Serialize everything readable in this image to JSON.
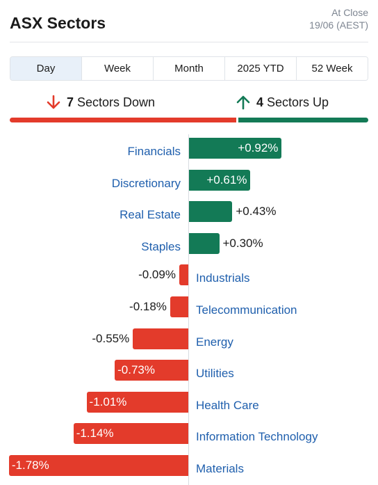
{
  "header": {
    "title": "ASX Sectors",
    "as_of_line1": "At Close",
    "as_of_line2": "19/06 (AEST)"
  },
  "tabs": [
    {
      "label": "Day",
      "active": true
    },
    {
      "label": "Week",
      "active": false
    },
    {
      "label": "Month",
      "active": false
    },
    {
      "label": "2025 YTD",
      "active": false
    },
    {
      "label": "52 Week",
      "active": false
    }
  ],
  "summary": {
    "down_count": "7",
    "down_label": "Sectors Down",
    "up_count": "4",
    "up_label": "Sectors Up"
  },
  "colors": {
    "up": "#137a56",
    "down": "#e33b2b",
    "sector_link": "#1f5fad",
    "active_tab": "#e8f0f9"
  },
  "icons": {
    "down": "arrow-down-icon",
    "up": "arrow-up-icon"
  },
  "sectors": [
    {
      "name": "Financials",
      "change": 0.92,
      "label": "+0.92%"
    },
    {
      "name": "Discretionary",
      "change": 0.61,
      "label": "+0.61%"
    },
    {
      "name": "Real Estate",
      "change": 0.43,
      "label": "+0.43%"
    },
    {
      "name": "Staples",
      "change": 0.3,
      "label": "+0.30%"
    },
    {
      "name": "Industrials",
      "change": -0.09,
      "label": "-0.09%"
    },
    {
      "name": "Telecommunication",
      "change": -0.18,
      "label": "-0.18%"
    },
    {
      "name": "Energy",
      "change": -0.55,
      "label": "-0.55%"
    },
    {
      "name": "Utilities",
      "change": -0.73,
      "label": "-0.73%"
    },
    {
      "name": "Health Care",
      "change": -1.01,
      "label": "-1.01%"
    },
    {
      "name": "Information Technology",
      "change": -1.14,
      "label": "-1.14%"
    },
    {
      "name": "Materials",
      "change": -1.78,
      "label": "-1.78%"
    }
  ]
}
